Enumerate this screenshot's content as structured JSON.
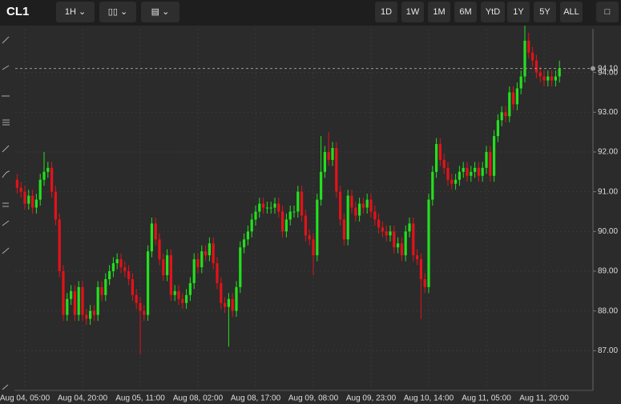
{
  "toolbar": {
    "symbol": "CL1",
    "interval": "1H",
    "ranges": [
      "1D",
      "1W",
      "1M",
      "6M",
      "YtD",
      "1Y",
      "5Y",
      "ALL"
    ]
  },
  "chart_data": {
    "type": "candlestick",
    "up_color": "#22e01e",
    "down_color": "#e4121a",
    "grid": true,
    "ylim": [
      86,
      95.1
    ],
    "yticks": [
      {
        "value": 87,
        "label": "87.00"
      },
      {
        "value": 88,
        "label": "88.00"
      },
      {
        "value": 89,
        "label": "89.00"
      },
      {
        "value": 90,
        "label": "90.00"
      },
      {
        "value": 91,
        "label": "91.00"
      },
      {
        "value": 92,
        "label": "92.00"
      },
      {
        "value": 93,
        "label": "93.00"
      },
      {
        "value": 94,
        "label": "94.00"
      }
    ],
    "last_price": {
      "value": 94.1,
      "label": "94.10"
    },
    "categories": [
      null,
      null,
      "Aug 04, 05:00",
      null,
      null,
      null,
      null,
      null,
      null,
      null,
      null,
      null,
      null,
      null,
      null,
      null,
      null,
      "Aug 04, 20:00",
      null,
      null,
      null,
      null,
      null,
      null,
      null,
      null,
      null,
      null,
      null,
      null,
      null,
      null,
      "Aug 05, 11:00",
      null,
      null,
      null,
      null,
      null,
      null,
      null,
      null,
      null,
      null,
      null,
      null,
      null,
      null,
      "Aug 08, 02:00",
      null,
      null,
      null,
      null,
      null,
      null,
      null,
      null,
      null,
      null,
      null,
      null,
      null,
      null,
      "Aug 08, 17:00",
      null,
      null,
      null,
      null,
      null,
      null,
      null,
      null,
      null,
      null,
      null,
      null,
      null,
      null,
      "Aug 09, 08:00",
      null,
      null,
      null,
      null,
      null,
      null,
      null,
      null,
      null,
      null,
      null,
      null,
      null,
      null,
      "Aug 09, 23:00",
      null,
      null,
      null,
      null,
      null,
      null,
      null,
      null,
      null,
      null,
      null,
      null,
      null,
      null,
      "Aug 10, 14:00",
      null,
      null,
      null,
      null,
      null,
      null,
      null,
      null,
      null,
      null,
      null,
      null,
      null,
      null,
      "Aug 11, 05:00",
      null,
      null,
      null,
      null,
      null,
      null,
      null,
      null,
      null,
      null,
      null,
      null,
      null,
      null,
      "Aug 11, 20:00",
      null,
      null,
      null,
      null
    ],
    "values": [
      [
        91.3,
        91.45,
        90.95,
        91.1
      ],
      [
        91.1,
        91.25,
        90.85,
        91.0
      ],
      [
        91.0,
        91.15,
        90.55,
        90.7
      ],
      [
        90.7,
        91.05,
        90.55,
        90.9
      ],
      [
        90.9,
        91.05,
        90.45,
        90.6
      ],
      [
        90.6,
        90.95,
        90.45,
        90.8
      ],
      [
        90.8,
        91.45,
        90.65,
        91.3
      ],
      [
        91.3,
        92.0,
        91.15,
        91.5
      ],
      [
        91.5,
        91.75,
        91.35,
        91.6
      ],
      [
        91.6,
        91.75,
        90.85,
        91.0
      ],
      [
        91.0,
        91.15,
        90.15,
        90.3
      ],
      [
        90.3,
        90.45,
        88.85,
        89.0
      ],
      [
        89.0,
        89.15,
        87.75,
        87.9
      ],
      [
        87.9,
        88.45,
        87.75,
        88.3
      ],
      [
        88.3,
        88.65,
        88.15,
        88.5
      ],
      [
        88.5,
        88.65,
        87.75,
        87.9
      ],
      [
        87.9,
        88.75,
        87.75,
        88.6
      ],
      [
        88.6,
        88.75,
        87.75,
        87.9
      ],
      [
        87.9,
        88.05,
        87.65,
        87.8
      ],
      [
        87.8,
        88.15,
        87.65,
        88.0
      ],
      [
        88.0,
        88.15,
        87.75,
        87.9
      ],
      [
        87.9,
        88.75,
        87.75,
        88.6
      ],
      [
        88.6,
        88.75,
        88.25,
        88.4
      ],
      [
        88.4,
        88.95,
        88.25,
        88.8
      ],
      [
        88.8,
        89.15,
        88.65,
        89.0
      ],
      [
        89.0,
        89.35,
        88.85,
        89.2
      ],
      [
        89.2,
        89.45,
        89.05,
        89.3
      ],
      [
        89.3,
        89.45,
        88.95,
        89.1
      ],
      [
        89.1,
        89.25,
        88.85,
        89.0
      ],
      [
        89.0,
        89.15,
        88.65,
        88.8
      ],
      [
        88.8,
        88.95,
        88.25,
        88.4
      ],
      [
        88.4,
        88.55,
        88.05,
        88.2
      ],
      [
        88.2,
        88.35,
        86.9,
        88.0
      ],
      [
        88.0,
        88.15,
        87.75,
        87.9
      ],
      [
        87.9,
        89.65,
        87.75,
        89.5
      ],
      [
        89.5,
        90.35,
        89.35,
        90.2
      ],
      [
        90.2,
        90.35,
        89.65,
        89.8
      ],
      [
        89.8,
        89.95,
        89.15,
        89.3
      ],
      [
        89.3,
        89.45,
        88.75,
        88.9
      ],
      [
        88.9,
        89.55,
        88.75,
        89.4
      ],
      [
        89.4,
        89.55,
        88.25,
        88.4
      ],
      [
        88.4,
        88.65,
        88.25,
        88.5
      ],
      [
        88.5,
        88.65,
        88.15,
        88.3
      ],
      [
        88.3,
        88.45,
        88.05,
        88.2
      ],
      [
        88.2,
        88.55,
        88.05,
        88.4
      ],
      [
        88.4,
        88.85,
        88.25,
        88.7
      ],
      [
        88.7,
        89.45,
        88.55,
        89.3
      ],
      [
        89.3,
        89.45,
        88.95,
        89.1
      ],
      [
        89.1,
        89.65,
        88.95,
        89.5
      ],
      [
        89.5,
        89.65,
        89.25,
        89.4
      ],
      [
        89.4,
        89.85,
        89.25,
        89.7
      ],
      [
        89.7,
        89.85,
        89.05,
        89.2
      ],
      [
        89.2,
        89.35,
        88.55,
        88.7
      ],
      [
        88.7,
        88.85,
        88.05,
        88.2
      ],
      [
        88.2,
        88.35,
        87.95,
        88.1
      ],
      [
        88.1,
        88.45,
        87.1,
        88.3
      ],
      [
        88.3,
        88.45,
        87.85,
        88.0
      ],
      [
        88.0,
        88.75,
        87.85,
        88.6
      ],
      [
        88.6,
        89.75,
        88.45,
        89.6
      ],
      [
        89.6,
        89.95,
        89.45,
        89.8
      ],
      [
        89.8,
        90.15,
        89.65,
        90.0
      ],
      [
        90.0,
        90.45,
        89.85,
        90.3
      ],
      [
        90.3,
        90.65,
        90.15,
        90.5
      ],
      [
        90.5,
        90.85,
        90.35,
        90.7
      ],
      [
        90.7,
        90.85,
        90.45,
        90.6
      ],
      [
        90.6,
        90.75,
        90.45,
        90.6
      ],
      [
        90.6,
        90.75,
        90.45,
        90.6
      ],
      [
        90.6,
        90.85,
        90.45,
        90.7
      ],
      [
        90.7,
        90.85,
        90.35,
        90.5
      ],
      [
        90.5,
        90.65,
        89.85,
        90.0
      ],
      [
        90.0,
        90.45,
        89.85,
        90.3
      ],
      [
        90.3,
        90.65,
        90.15,
        90.5
      ],
      [
        90.5,
        90.65,
        90.35,
        90.5
      ],
      [
        90.5,
        91.15,
        90.35,
        91.0
      ],
      [
        91.0,
        91.15,
        90.25,
        90.4
      ],
      [
        90.4,
        90.55,
        89.75,
        89.9
      ],
      [
        89.9,
        90.05,
        89.65,
        89.8
      ],
      [
        89.8,
        89.95,
        88.9,
        89.4
      ],
      [
        89.4,
        90.95,
        89.25,
        90.8
      ],
      [
        90.8,
        92.4,
        90.65,
        91.5
      ],
      [
        91.5,
        92.15,
        91.35,
        92.0
      ],
      [
        92.0,
        92.5,
        91.65,
        91.8
      ],
      [
        91.8,
        92.25,
        91.65,
        92.1
      ],
      [
        92.1,
        92.25,
        90.85,
        91.0
      ],
      [
        91.0,
        91.15,
        90.15,
        90.3
      ],
      [
        90.3,
        90.45,
        89.65,
        89.8
      ],
      [
        89.8,
        91.05,
        89.65,
        90.9
      ],
      [
        90.9,
        91.05,
        90.45,
        90.6
      ],
      [
        90.6,
        90.75,
        90.25,
        90.4
      ],
      [
        90.4,
        90.85,
        90.25,
        90.7
      ],
      [
        90.7,
        90.85,
        90.45,
        90.6
      ],
      [
        90.6,
        90.95,
        90.45,
        90.8
      ],
      [
        90.8,
        90.95,
        90.35,
        90.5
      ],
      [
        90.5,
        90.65,
        90.15,
        90.3
      ],
      [
        90.3,
        90.45,
        89.95,
        90.1
      ],
      [
        90.1,
        90.25,
        89.85,
        90.0
      ],
      [
        90.0,
        90.15,
        89.75,
        89.9
      ],
      [
        89.9,
        90.15,
        89.75,
        90.0
      ],
      [
        90.0,
        90.15,
        89.45,
        89.6
      ],
      [
        89.6,
        89.85,
        89.45,
        89.7
      ],
      [
        89.7,
        89.85,
        89.25,
        89.4
      ],
      [
        89.4,
        90.15,
        89.25,
        90.0
      ],
      [
        90.0,
        90.35,
        89.85,
        90.2
      ],
      [
        90.2,
        90.35,
        89.25,
        89.4
      ],
      [
        89.4,
        89.55,
        89.15,
        89.3
      ],
      [
        89.3,
        89.45,
        87.8,
        88.8
      ],
      [
        88.8,
        88.95,
        88.45,
        88.6
      ],
      [
        88.6,
        90.95,
        88.45,
        90.8
      ],
      [
        90.8,
        91.65,
        90.65,
        91.5
      ],
      [
        91.5,
        92.35,
        91.35,
        92.2
      ],
      [
        92.2,
        92.35,
        91.65,
        91.8
      ],
      [
        91.8,
        91.95,
        91.45,
        91.6
      ],
      [
        91.6,
        91.75,
        91.15,
        91.3
      ],
      [
        91.3,
        91.45,
        91.05,
        91.2
      ],
      [
        91.2,
        91.45,
        91.05,
        91.3
      ],
      [
        91.3,
        91.65,
        91.15,
        91.5
      ],
      [
        91.5,
        91.75,
        91.35,
        91.6
      ],
      [
        91.6,
        91.75,
        91.25,
        91.4
      ],
      [
        91.4,
        91.65,
        91.25,
        91.5
      ],
      [
        91.5,
        91.75,
        91.35,
        91.6
      ],
      [
        91.6,
        91.75,
        91.25,
        91.4
      ],
      [
        91.4,
        91.75,
        91.25,
        91.6
      ],
      [
        91.6,
        92.15,
        91.45,
        92.0
      ],
      [
        92.0,
        92.15,
        91.25,
        91.4
      ],
      [
        91.4,
        92.55,
        91.25,
        92.4
      ],
      [
        92.4,
        92.95,
        92.25,
        92.8
      ],
      [
        92.8,
        93.15,
        92.65,
        93.0
      ],
      [
        93.0,
        93.15,
        92.75,
        92.9
      ],
      [
        92.9,
        93.65,
        92.75,
        93.5
      ],
      [
        93.5,
        93.65,
        93.05,
        93.2
      ],
      [
        93.2,
        93.75,
        93.05,
        93.6
      ],
      [
        93.6,
        94.05,
        93.45,
        93.9
      ],
      [
        93.9,
        95.2,
        93.75,
        94.8
      ],
      [
        94.8,
        95.0,
        94.35,
        94.5
      ],
      [
        94.5,
        94.65,
        94.15,
        94.3
      ],
      [
        94.3,
        94.45,
        93.85,
        94.0
      ],
      [
        94.0,
        94.15,
        93.75,
        93.9
      ],
      [
        93.9,
        94.05,
        93.65,
        93.8
      ],
      [
        93.8,
        94.05,
        93.65,
        93.9
      ],
      [
        93.9,
        94.05,
        93.65,
        93.8
      ],
      [
        93.8,
        94.05,
        93.65,
        93.9
      ],
      [
        93.9,
        94.3,
        93.75,
        94.1
      ]
    ]
  }
}
